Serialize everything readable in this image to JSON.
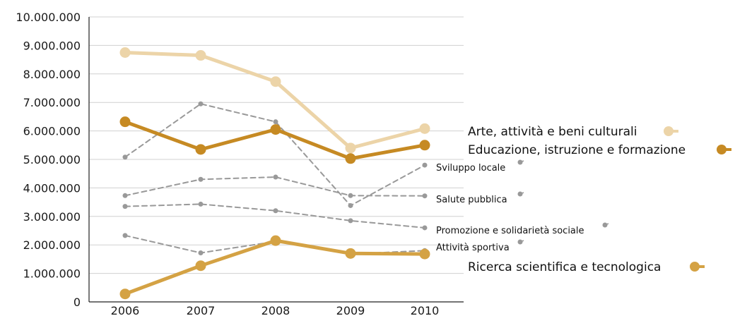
{
  "chart_data": {
    "type": "line",
    "x": [
      "2006",
      "2007",
      "2008",
      "2009",
      "2010"
    ],
    "ylim": [
      0,
      10000000
    ],
    "yticks": [
      "0",
      "1.000.000",
      "2.000.000",
      "3.000.000",
      "4.000.000",
      "5.000.000",
      "6.000.000",
      "7.000.000",
      "8.000.000",
      "9.000.000",
      "10.000.000"
    ],
    "grid": true,
    "series": [
      {
        "name": "Arte, attività e beni culturali",
        "values": [
          8750000,
          8650000,
          7730000,
          5400000,
          6080000
        ],
        "color": "#ecd4a8",
        "style": "solid",
        "emphasis": "major"
      },
      {
        "name": "Educazione, istruzione e formazione",
        "values": [
          6320000,
          5350000,
          6050000,
          5030000,
          5500000
        ],
        "color": "#c68a23",
        "style": "solid",
        "emphasis": "major"
      },
      {
        "name": "Sviluppo locale",
        "values": [
          5080000,
          6950000,
          6320000,
          3380000,
          4800000
        ],
        "color": "#999999",
        "style": "dashed",
        "emphasis": "minor"
      },
      {
        "name": "Salute pubblica",
        "values": [
          3730000,
          4300000,
          4380000,
          3730000,
          3720000
        ],
        "color": "#999999",
        "style": "dashed",
        "emphasis": "minor"
      },
      {
        "name": "Promozione e solidarietà sociale",
        "values": [
          3350000,
          3430000,
          3200000,
          2850000,
          2600000
        ],
        "color": "#999999",
        "style": "dashed",
        "emphasis": "minor"
      },
      {
        "name": "Attività sportiva",
        "values": [
          2330000,
          1720000,
          2120000,
          1680000,
          1800000
        ],
        "color": "#999999",
        "style": "dashed",
        "emphasis": "minor"
      },
      {
        "name": "Ricerca scientifica e tecnologica",
        "values": [
          280000,
          1270000,
          2150000,
          1700000,
          1680000
        ],
        "color": "#d4a244",
        "style": "solid",
        "emphasis": "major"
      }
    ]
  }
}
